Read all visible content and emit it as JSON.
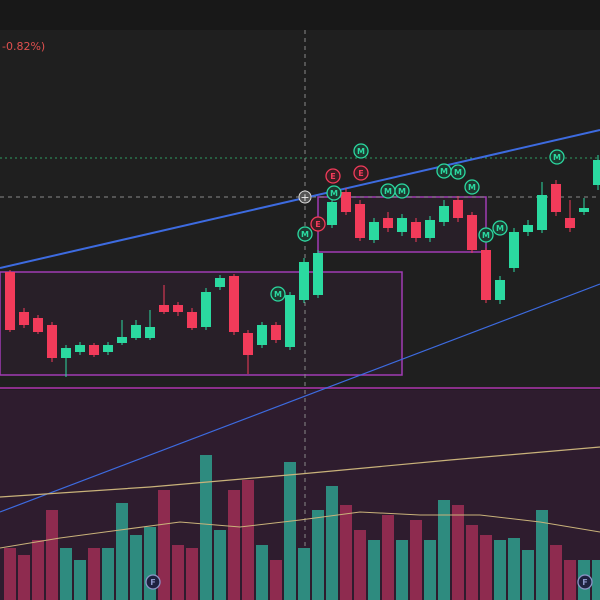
{
  "chart_data": {
    "type": "candlestick",
    "change_label": "-0.82%)",
    "categories": [
      null,
      null,
      null,
      null,
      null,
      null,
      null,
      null,
      null,
      null,
      null,
      null,
      null,
      null,
      null,
      null,
      null,
      null,
      null,
      null,
      null,
      null,
      null,
      null,
      null,
      null,
      null,
      null,
      null,
      null,
      null,
      null,
      null,
      null,
      null,
      null,
      null,
      null,
      null,
      null,
      null,
      null,
      null
    ],
    "open": [
      128,
      88,
      82,
      75,
      42,
      48,
      55,
      48,
      57,
      62,
      62,
      95,
      95,
      88,
      73,
      113,
      124,
      67,
      55,
      75,
      53,
      100,
      105,
      175,
      208,
      196,
      160,
      182,
      168,
      178,
      162,
      178,
      200,
      185,
      150,
      100,
      132,
      168,
      170,
      216,
      182,
      188,
      215
    ],
    "high": [
      130,
      92,
      85,
      78,
      55,
      58,
      57,
      58,
      80,
      80,
      90,
      115,
      98,
      92,
      112,
      125,
      126,
      70,
      78,
      78,
      108,
      142,
      150,
      202,
      212,
      200,
      182,
      188,
      186,
      182,
      184,
      200,
      204,
      188,
      152,
      124,
      172,
      180,
      218,
      220,
      200,
      202,
      245
    ],
    "low": [
      68,
      72,
      66,
      38,
      23,
      45,
      43,
      45,
      55,
      60,
      60,
      86,
      84,
      70,
      70,
      110,
      65,
      26,
      52,
      57,
      50,
      97,
      102,
      172,
      185,
      159,
      157,
      168,
      164,
      158,
      158,
      174,
      178,
      147,
      97,
      96,
      128,
      164,
      167,
      184,
      168,
      185,
      210
    ],
    "close": [
      70,
      75,
      68,
      42,
      52,
      55,
      45,
      55,
      63,
      75,
      73,
      88,
      88,
      72,
      108,
      122,
      68,
      45,
      75,
      60,
      105,
      138,
      147,
      198,
      188,
      162,
      178,
      172,
      182,
      162,
      180,
      194,
      182,
      150,
      100,
      120,
      168,
      175,
      205,
      188,
      172,
      192,
      240
    ],
    "volume": [
      52,
      45,
      60,
      90,
      52,
      40,
      52,
      52,
      97,
      65,
      73,
      110,
      55,
      52,
      145,
      70,
      110,
      120,
      55,
      40,
      138,
      52,
      90,
      114,
      95,
      70,
      60,
      85,
      60,
      80,
      60,
      100,
      95,
      75,
      65,
      60,
      62,
      50,
      90,
      55,
      40,
      40,
      40
    ],
    "ylim": [
      15,
      370
    ],
    "volume_ylim": [
      0,
      210
    ],
    "up_color": "#2bd9a0",
    "down_color": "#f23b5a",
    "volume_up_color": "#2e8b7f",
    "volume_down_color": "#8e2b4f",
    "event_labels": [
      "M",
      "M",
      "M",
      "M",
      "M",
      "M",
      "M",
      "M",
      "M",
      "M",
      "M",
      "M",
      "E",
      "E",
      "E",
      "F",
      "F"
    ]
  }
}
